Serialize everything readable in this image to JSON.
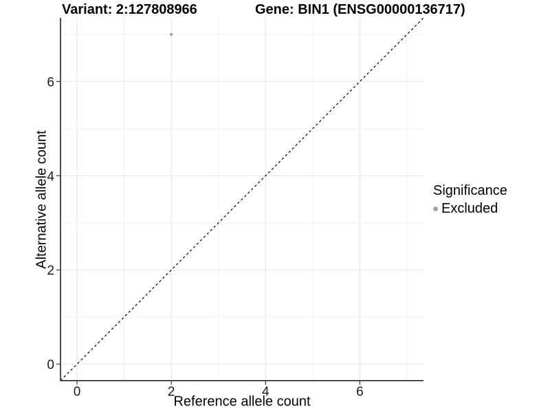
{
  "header": {
    "variant_title": "Variant: 2:127808966",
    "gene_title": "Gene: BIN1 (ENSG00000136717)"
  },
  "chart_data": {
    "type": "scatter",
    "title": "Variant: 2:127808966    Gene: BIN1 (ENSG00000136717)",
    "xlabel": "Reference allele count",
    "ylabel": "Alternative allele count",
    "xlim": [
      -0.35,
      7.35
    ],
    "ylim": [
      -0.35,
      7.35
    ],
    "x_ticks": [
      0,
      2,
      4,
      6
    ],
    "y_ticks": [
      0,
      2,
      4,
      6
    ],
    "minor_gridlines": [
      1,
      3,
      5,
      7
    ],
    "grid": true,
    "points": [
      {
        "x": 2,
        "y": 7,
        "series": "Excluded"
      }
    ],
    "identity_line": {
      "dashed": true,
      "color": "#000000",
      "x1": -0.35,
      "y1": -0.35,
      "x2": 7.35,
      "y2": 7.35
    },
    "legend": {
      "title": "Significance",
      "position": "right",
      "items": [
        {
          "label": "Excluded",
          "color": "#a6a6a6"
        }
      ]
    },
    "colors": {
      "background": "#ffffff",
      "grid_major": "#e4e4e4",
      "grid_minor": "#f2f2f2",
      "axis_line": "#4d4d4d",
      "tick_mark": "#333333",
      "tick_label": "#1a1a1a",
      "point": "#a6a6a6"
    }
  }
}
